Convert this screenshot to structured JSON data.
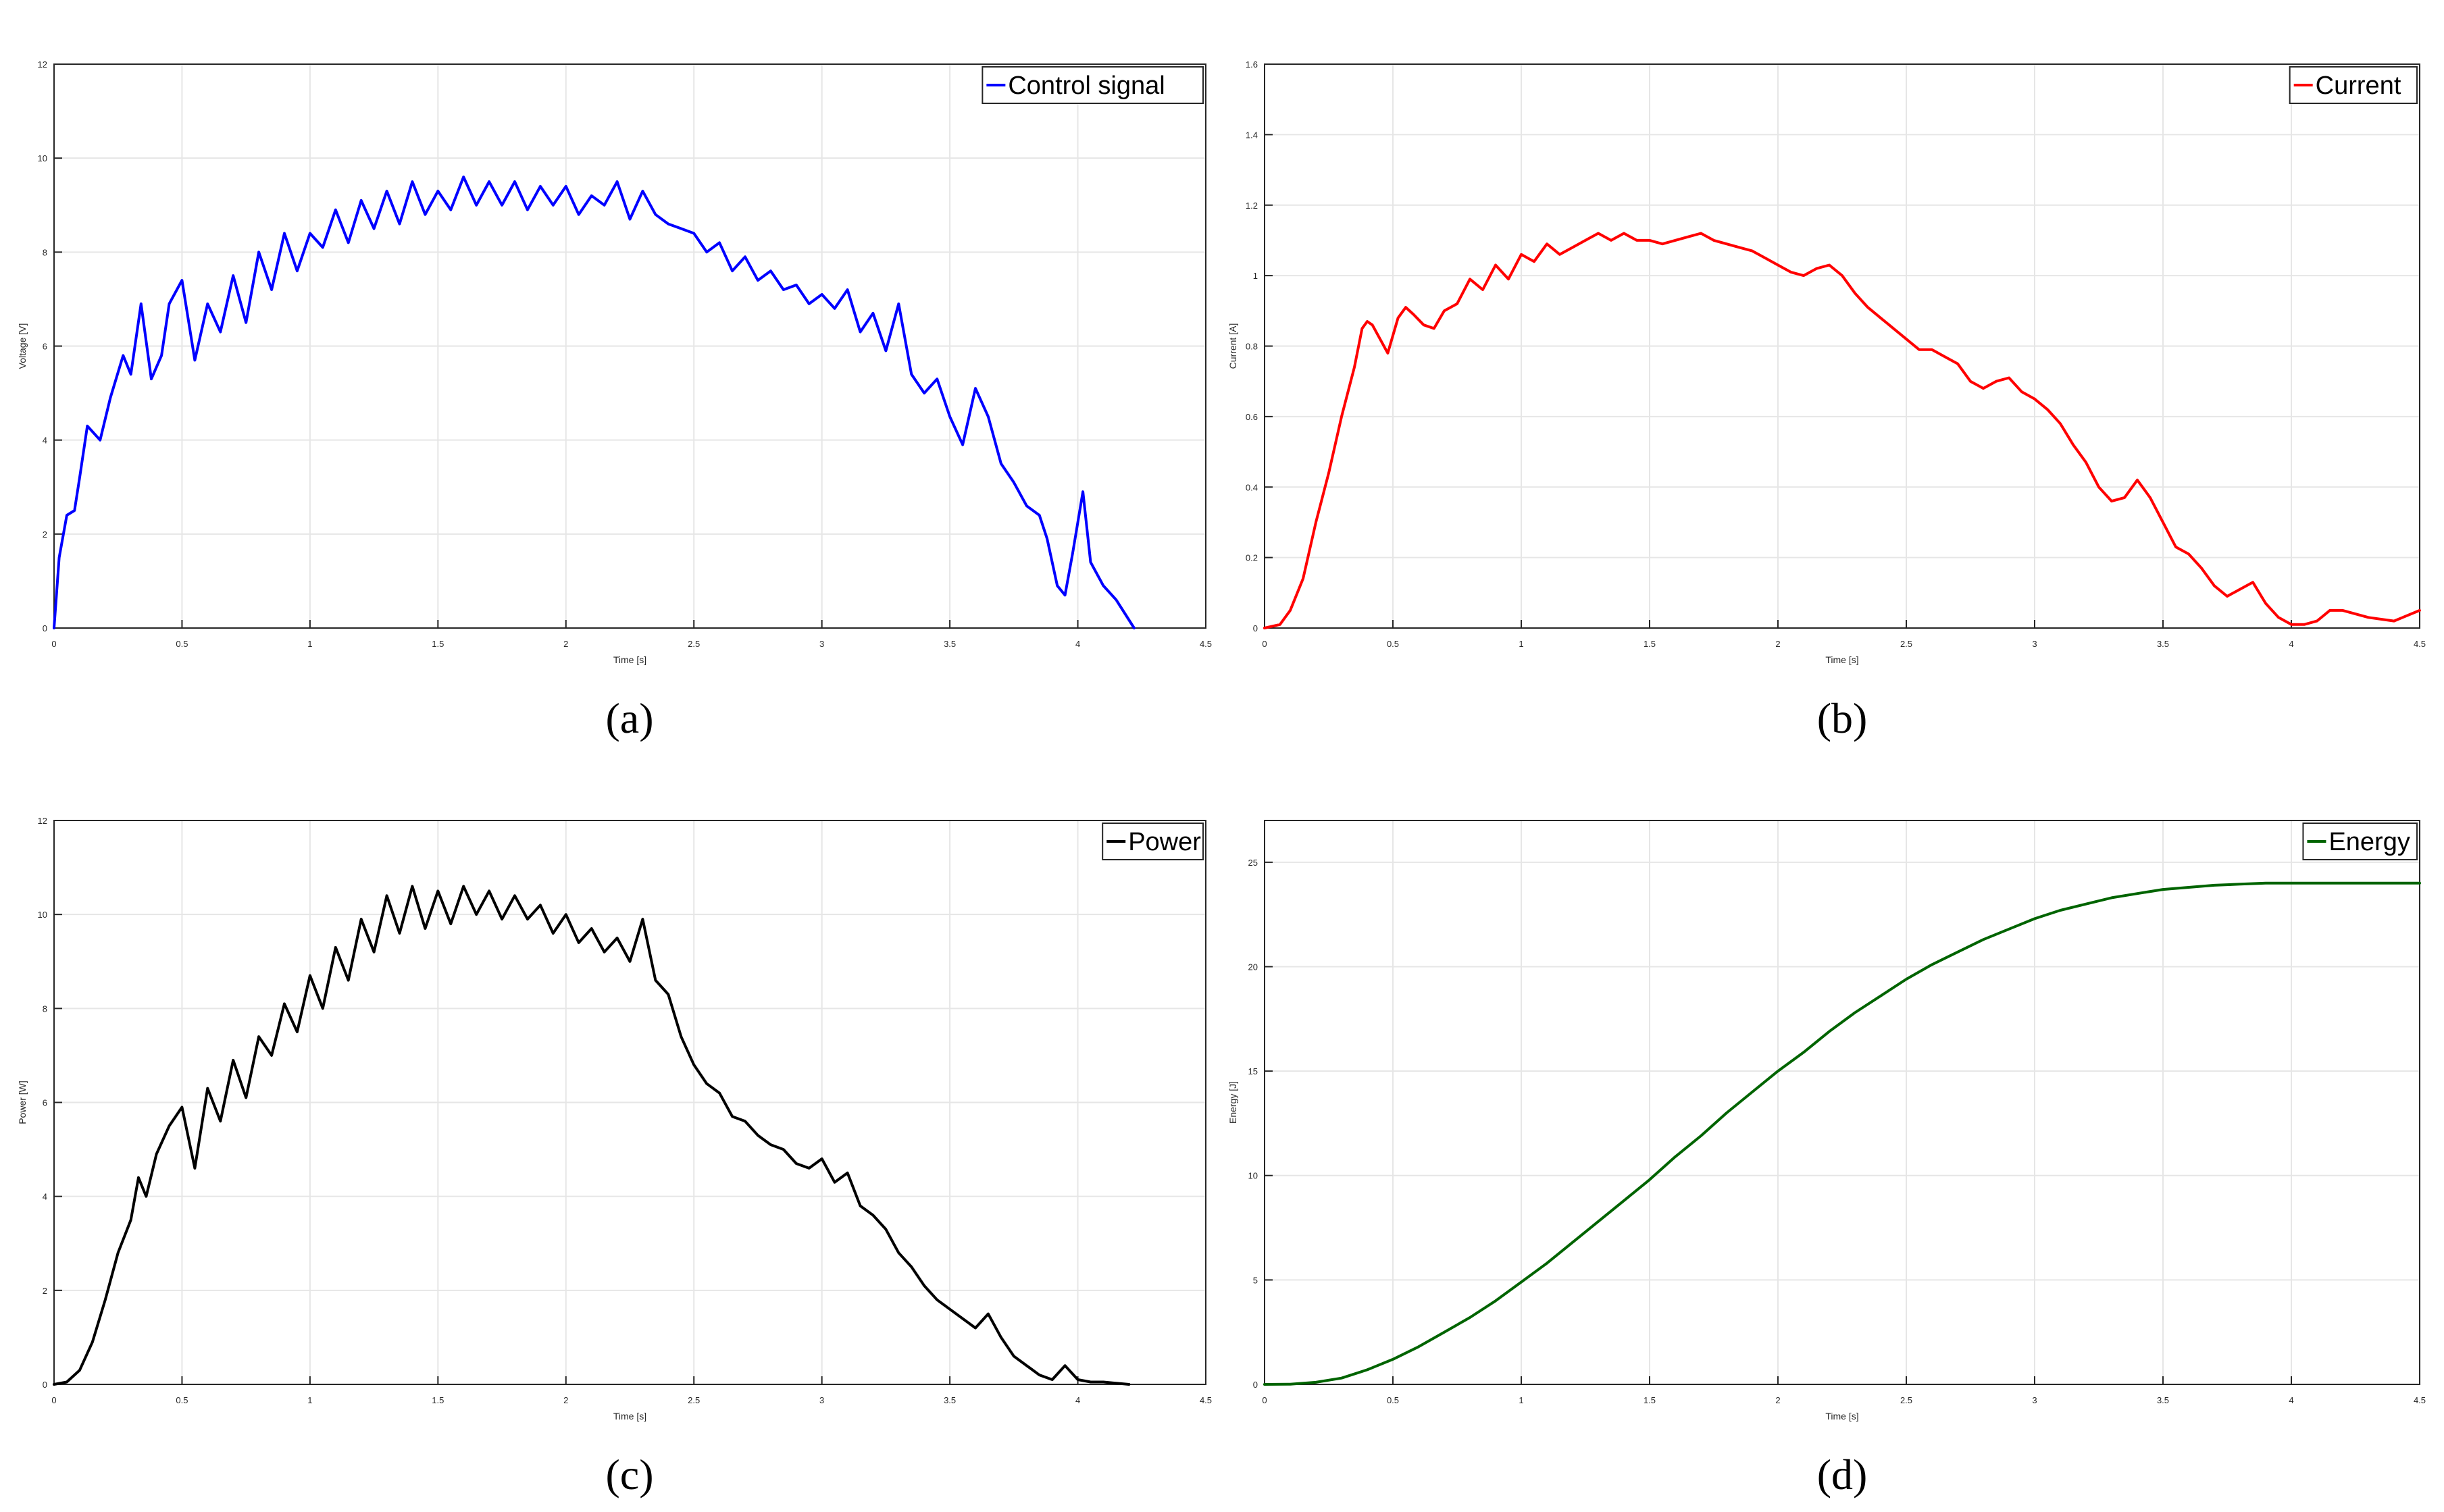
{
  "chart_data": [
    {
      "id": "a",
      "type": "line",
      "caption": "(a)",
      "xlabel": "Time [s]",
      "ylabel": "Voltage [V]",
      "xlim": [
        0,
        4.5
      ],
      "ylim": [
        0,
        12
      ],
      "xticks": [
        0,
        0.5,
        1,
        1.5,
        2,
        2.5,
        3,
        3.5,
        4,
        4.5
      ],
      "yticks": [
        0,
        2,
        4,
        6,
        8,
        10,
        12
      ],
      "grid": true,
      "legend_position": "top-right",
      "color": "#0000ff",
      "series": [
        {
          "name": "Control signal",
          "x": [
            0,
            0.02,
            0.05,
            0.08,
            0.1,
            0.13,
            0.18,
            0.22,
            0.27,
            0.3,
            0.34,
            0.38,
            0.42,
            0.45,
            0.5,
            0.55,
            0.6,
            0.65,
            0.7,
            0.75,
            0.8,
            0.85,
            0.9,
            0.95,
            1.0,
            1.05,
            1.1,
            1.15,
            1.2,
            1.25,
            1.3,
            1.35,
            1.4,
            1.45,
            1.5,
            1.55,
            1.6,
            1.65,
            1.7,
            1.75,
            1.8,
            1.85,
            1.9,
            1.95,
            2.0,
            2.05,
            2.1,
            2.15,
            2.2,
            2.25,
            2.3,
            2.35,
            2.4,
            2.45,
            2.5,
            2.55,
            2.6,
            2.65,
            2.7,
            2.75,
            2.8,
            2.85,
            2.9,
            2.95,
            3.0,
            3.05,
            3.1,
            3.15,
            3.2,
            3.25,
            3.3,
            3.35,
            3.4,
            3.45,
            3.5,
            3.55,
            3.6,
            3.65,
            3.7,
            3.75,
            3.8,
            3.85,
            3.88,
            3.92,
            3.95,
            3.98,
            4.02,
            4.05,
            4.1,
            4.15,
            4.22
          ],
          "y": [
            0,
            1.5,
            2.4,
            2.5,
            3.2,
            4.3,
            4.0,
            4.9,
            5.8,
            5.4,
            6.9,
            5.3,
            5.8,
            6.9,
            7.4,
            5.7,
            6.9,
            6.3,
            7.5,
            6.5,
            8.0,
            7.2,
            8.4,
            7.6,
            8.4,
            8.1,
            8.9,
            8.2,
            9.1,
            8.5,
            9.3,
            8.6,
            9.5,
            8.8,
            9.3,
            8.9,
            9.6,
            9.0,
            9.5,
            9.0,
            9.5,
            8.9,
            9.4,
            9.0,
            9.4,
            8.8,
            9.2,
            9.0,
            9.5,
            8.7,
            9.3,
            8.8,
            8.6,
            8.5,
            8.4,
            8.0,
            8.2,
            7.6,
            7.9,
            7.4,
            7.6,
            7.2,
            7.3,
            6.9,
            7.1,
            6.8,
            7.2,
            6.3,
            6.7,
            5.9,
            6.9,
            5.4,
            5.0,
            5.3,
            4.5,
            3.9,
            5.1,
            4.5,
            3.5,
            3.1,
            2.6,
            2.4,
            1.9,
            0.9,
            0.7,
            1.6,
            2.9,
            1.4,
            0.9,
            0.6,
            0
          ]
        }
      ]
    },
    {
      "id": "b",
      "type": "line",
      "caption": "(b)",
      "xlabel": "Time [s]",
      "ylabel": "Current [A]",
      "xlim": [
        0,
        4.5
      ],
      "ylim": [
        0,
        1.6
      ],
      "xticks": [
        0,
        0.5,
        1,
        1.5,
        2,
        2.5,
        3,
        3.5,
        4,
        4.5
      ],
      "yticks": [
        0,
        0.2,
        0.4,
        0.6,
        0.8,
        1,
        1.2,
        1.4,
        1.6
      ],
      "grid": true,
      "legend_position": "top-right",
      "color": "#ff0000",
      "series": [
        {
          "name": "Current",
          "x": [
            0,
            0.06,
            0.1,
            0.15,
            0.2,
            0.25,
            0.3,
            0.35,
            0.38,
            0.4,
            0.42,
            0.45,
            0.48,
            0.52,
            0.55,
            0.58,
            0.62,
            0.66,
            0.7,
            0.75,
            0.8,
            0.85,
            0.9,
            0.95,
            1.0,
            1.05,
            1.1,
            1.15,
            1.2,
            1.25,
            1.3,
            1.35,
            1.4,
            1.45,
            1.5,
            1.55,
            1.6,
            1.65,
            1.7,
            1.75,
            1.8,
            1.85,
            1.9,
            1.95,
            2.0,
            2.05,
            2.1,
            2.15,
            2.2,
            2.25,
            2.3,
            2.35,
            2.4,
            2.45,
            2.5,
            2.55,
            2.6,
            2.65,
            2.7,
            2.75,
            2.8,
            2.85,
            2.9,
            2.95,
            3.0,
            3.05,
            3.1,
            3.15,
            3.2,
            3.25,
            3.3,
            3.35,
            3.4,
            3.45,
            3.5,
            3.55,
            3.6,
            3.65,
            3.7,
            3.75,
            3.8,
            3.85,
            3.9,
            3.95,
            4.0,
            4.05,
            4.1,
            4.15,
            4.2,
            4.3,
            4.4,
            4.5
          ],
          "y": [
            0,
            0.01,
            0.05,
            0.14,
            0.3,
            0.44,
            0.6,
            0.74,
            0.85,
            0.87,
            0.86,
            0.82,
            0.78,
            0.88,
            0.91,
            0.89,
            0.86,
            0.85,
            0.9,
            0.92,
            0.99,
            0.96,
            1.03,
            0.99,
            1.06,
            1.04,
            1.09,
            1.06,
            1.08,
            1.1,
            1.12,
            1.1,
            1.12,
            1.1,
            1.1,
            1.09,
            1.1,
            1.11,
            1.12,
            1.1,
            1.09,
            1.08,
            1.07,
            1.05,
            1.03,
            1.01,
            1.0,
            1.02,
            1.03,
            1.0,
            0.95,
            0.91,
            0.88,
            0.85,
            0.82,
            0.79,
            0.79,
            0.77,
            0.75,
            0.7,
            0.68,
            0.7,
            0.71,
            0.67,
            0.65,
            0.62,
            0.58,
            0.52,
            0.47,
            0.4,
            0.36,
            0.37,
            0.42,
            0.37,
            0.3,
            0.23,
            0.21,
            0.17,
            0.12,
            0.09,
            0.11,
            0.13,
            0.07,
            0.03,
            0.01,
            0.01,
            0.02,
            0.05,
            0.05,
            0.03,
            0.02,
            0.05
          ]
        }
      ]
    },
    {
      "id": "c",
      "type": "line",
      "caption": "(c)",
      "xlabel": "Time [s]",
      "ylabel": "Power [W]",
      "xlim": [
        0,
        4.5
      ],
      "ylim": [
        0,
        12
      ],
      "xticks": [
        0,
        0.5,
        1,
        1.5,
        2,
        2.5,
        3,
        3.5,
        4,
        4.5
      ],
      "yticks": [
        0,
        2,
        4,
        6,
        8,
        10,
        12
      ],
      "grid": true,
      "legend_position": "top-right",
      "color": "#000000",
      "series": [
        {
          "name": "Power",
          "x": [
            0,
            0.05,
            0.1,
            0.15,
            0.2,
            0.25,
            0.3,
            0.33,
            0.36,
            0.4,
            0.45,
            0.5,
            0.55,
            0.6,
            0.65,
            0.7,
            0.75,
            0.8,
            0.85,
            0.9,
            0.95,
            1.0,
            1.05,
            1.1,
            1.15,
            1.2,
            1.25,
            1.3,
            1.35,
            1.4,
            1.45,
            1.5,
            1.55,
            1.6,
            1.65,
            1.7,
            1.75,
            1.8,
            1.85,
            1.9,
            1.95,
            2.0,
            2.05,
            2.1,
            2.15,
            2.2,
            2.25,
            2.3,
            2.35,
            2.4,
            2.45,
            2.5,
            2.55,
            2.6,
            2.65,
            2.7,
            2.75,
            2.8,
            2.85,
            2.9,
            2.95,
            3.0,
            3.05,
            3.1,
            3.15,
            3.2,
            3.25,
            3.3,
            3.35,
            3.4,
            3.45,
            3.5,
            3.55,
            3.6,
            3.65,
            3.7,
            3.75,
            3.8,
            3.85,
            3.9,
            3.95,
            4.0,
            4.05,
            4.1,
            4.2
          ],
          "y": [
            0,
            0.05,
            0.3,
            0.9,
            1.8,
            2.8,
            3.5,
            4.4,
            4.0,
            4.9,
            5.5,
            5.9,
            4.6,
            6.3,
            5.6,
            6.9,
            6.1,
            7.4,
            7.0,
            8.1,
            7.5,
            8.7,
            8.0,
            9.3,
            8.6,
            9.9,
            9.2,
            10.4,
            9.6,
            10.6,
            9.7,
            10.5,
            9.8,
            10.6,
            10.0,
            10.5,
            9.9,
            10.4,
            9.9,
            10.2,
            9.6,
            10.0,
            9.4,
            9.7,
            9.2,
            9.5,
            9.0,
            9.9,
            8.6,
            8.3,
            7.4,
            6.8,
            6.4,
            6.2,
            5.7,
            5.6,
            5.3,
            5.1,
            5.0,
            4.7,
            4.6,
            4.8,
            4.3,
            4.5,
            3.8,
            3.6,
            3.3,
            2.8,
            2.5,
            2.1,
            1.8,
            1.6,
            1.4,
            1.2,
            1.5,
            1.0,
            0.6,
            0.4,
            0.2,
            0.1,
            0.4,
            0.1,
            0.05,
            0.05,
            0
          ]
        }
      ]
    },
    {
      "id": "d",
      "type": "line",
      "caption": "(d)",
      "xlabel": "Time [s]",
      "ylabel": "Energy [J]",
      "xlim": [
        0,
        4.5
      ],
      "ylim": [
        0,
        27
      ],
      "xticks": [
        0,
        0.5,
        1,
        1.5,
        2,
        2.5,
        3,
        3.5,
        4,
        4.5
      ],
      "yticks": [
        0,
        5,
        10,
        15,
        20,
        25
      ],
      "grid": true,
      "legend_position": "top-right",
      "color": "#006400",
      "series": [
        {
          "name": "Energy",
          "x": [
            0,
            0.1,
            0.2,
            0.3,
            0.4,
            0.5,
            0.6,
            0.7,
            0.8,
            0.9,
            1.0,
            1.1,
            1.2,
            1.3,
            1.4,
            1.5,
            1.6,
            1.7,
            1.8,
            1.9,
            2.0,
            2.1,
            2.2,
            2.3,
            2.4,
            2.5,
            2.6,
            2.7,
            2.8,
            2.9,
            3.0,
            3.1,
            3.2,
            3.3,
            3.4,
            3.5,
            3.6,
            3.7,
            3.8,
            3.9,
            4.0,
            4.2,
            4.5
          ],
          "y": [
            0,
            0.01,
            0.1,
            0.3,
            0.7,
            1.2,
            1.8,
            2.5,
            3.2,
            4.0,
            4.9,
            5.8,
            6.8,
            7.8,
            8.8,
            9.8,
            10.9,
            11.9,
            13.0,
            14.0,
            15.0,
            15.9,
            16.9,
            17.8,
            18.6,
            19.4,
            20.1,
            20.7,
            21.3,
            21.8,
            22.3,
            22.7,
            23.0,
            23.3,
            23.5,
            23.7,
            23.8,
            23.9,
            23.95,
            24.0,
            24.0,
            24.0,
            24.0
          ]
        }
      ]
    }
  ]
}
